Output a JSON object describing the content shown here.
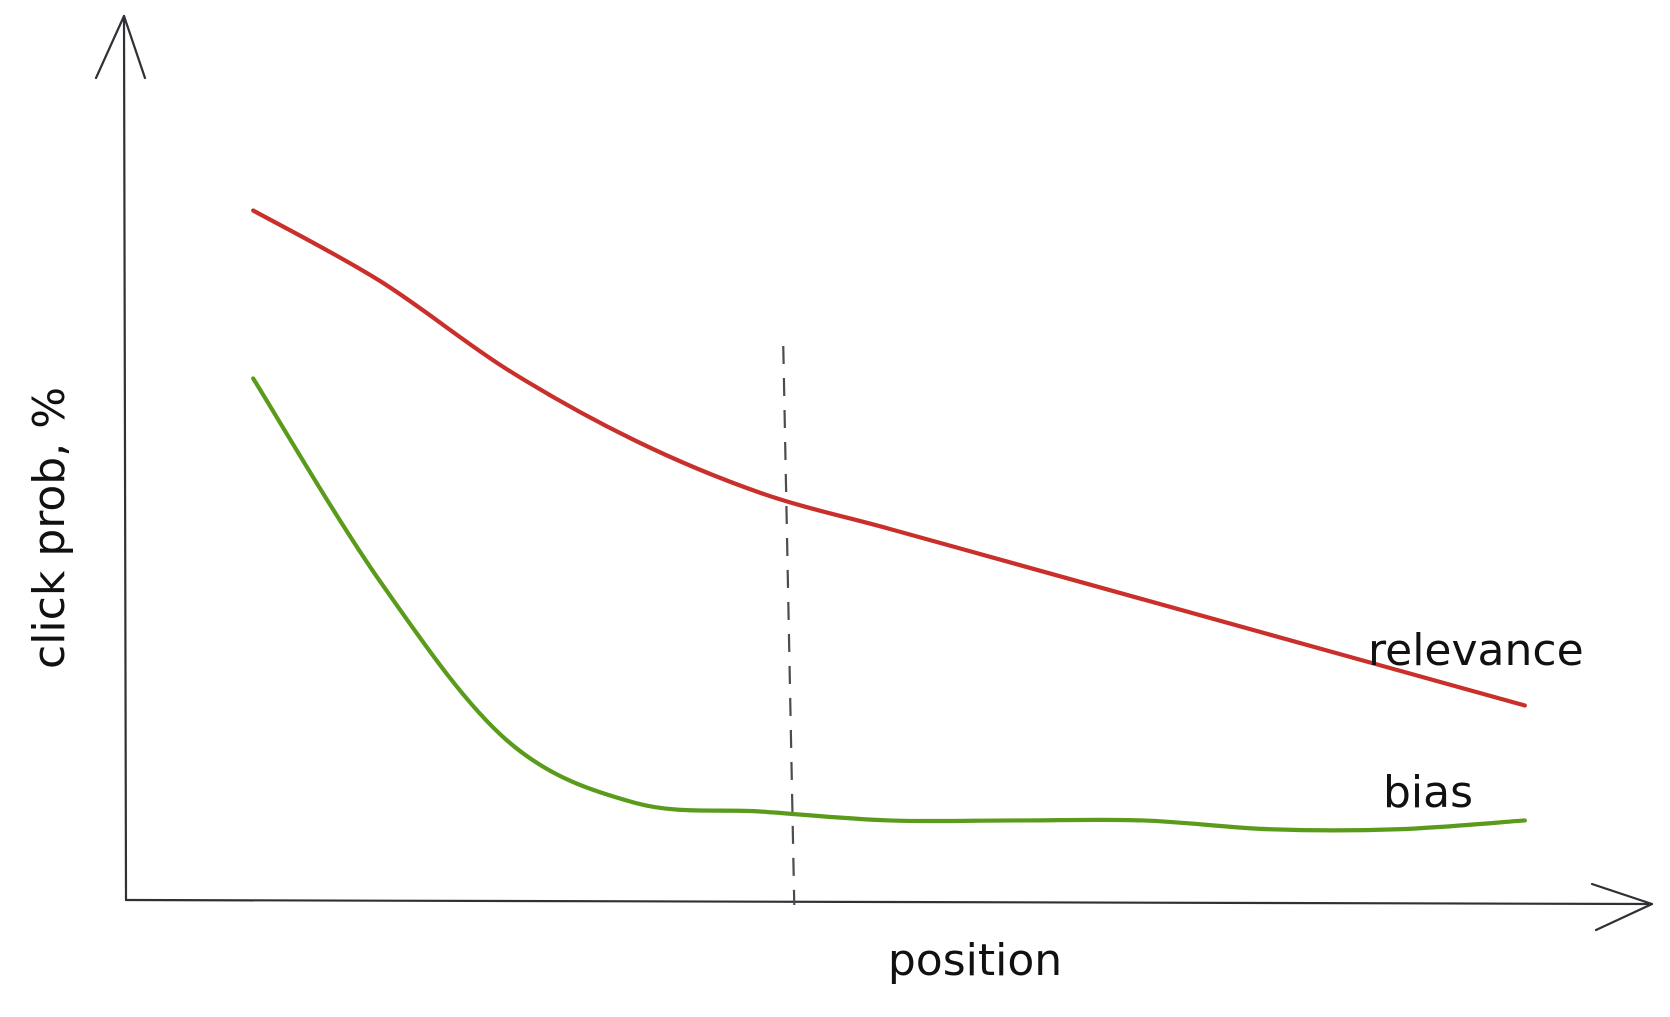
{
  "chart_data": {
    "type": "line",
    "xlabel": "position",
    "ylabel": "click prob, %",
    "x": [
      1,
      2,
      3,
      4,
      5,
      6,
      7,
      8,
      9,
      10,
      11
    ],
    "xlim": [
      0,
      12
    ],
    "ylim": [
      0,
      100
    ],
    "series": [
      {
        "name": "relevance",
        "color": "#c9302c",
        "values": [
          78,
          70,
          60,
          52,
          46,
          42,
          38,
          34,
          30,
          26,
          22
        ]
      },
      {
        "name": "bias",
        "color": "#5a9b1b",
        "values": [
          59,
          36,
          18,
          11,
          10,
          9,
          9,
          9,
          8,
          8,
          9
        ]
      }
    ],
    "annotations": [
      {
        "type": "vertical-dashed-line",
        "x": 5.2
      }
    ]
  }
}
